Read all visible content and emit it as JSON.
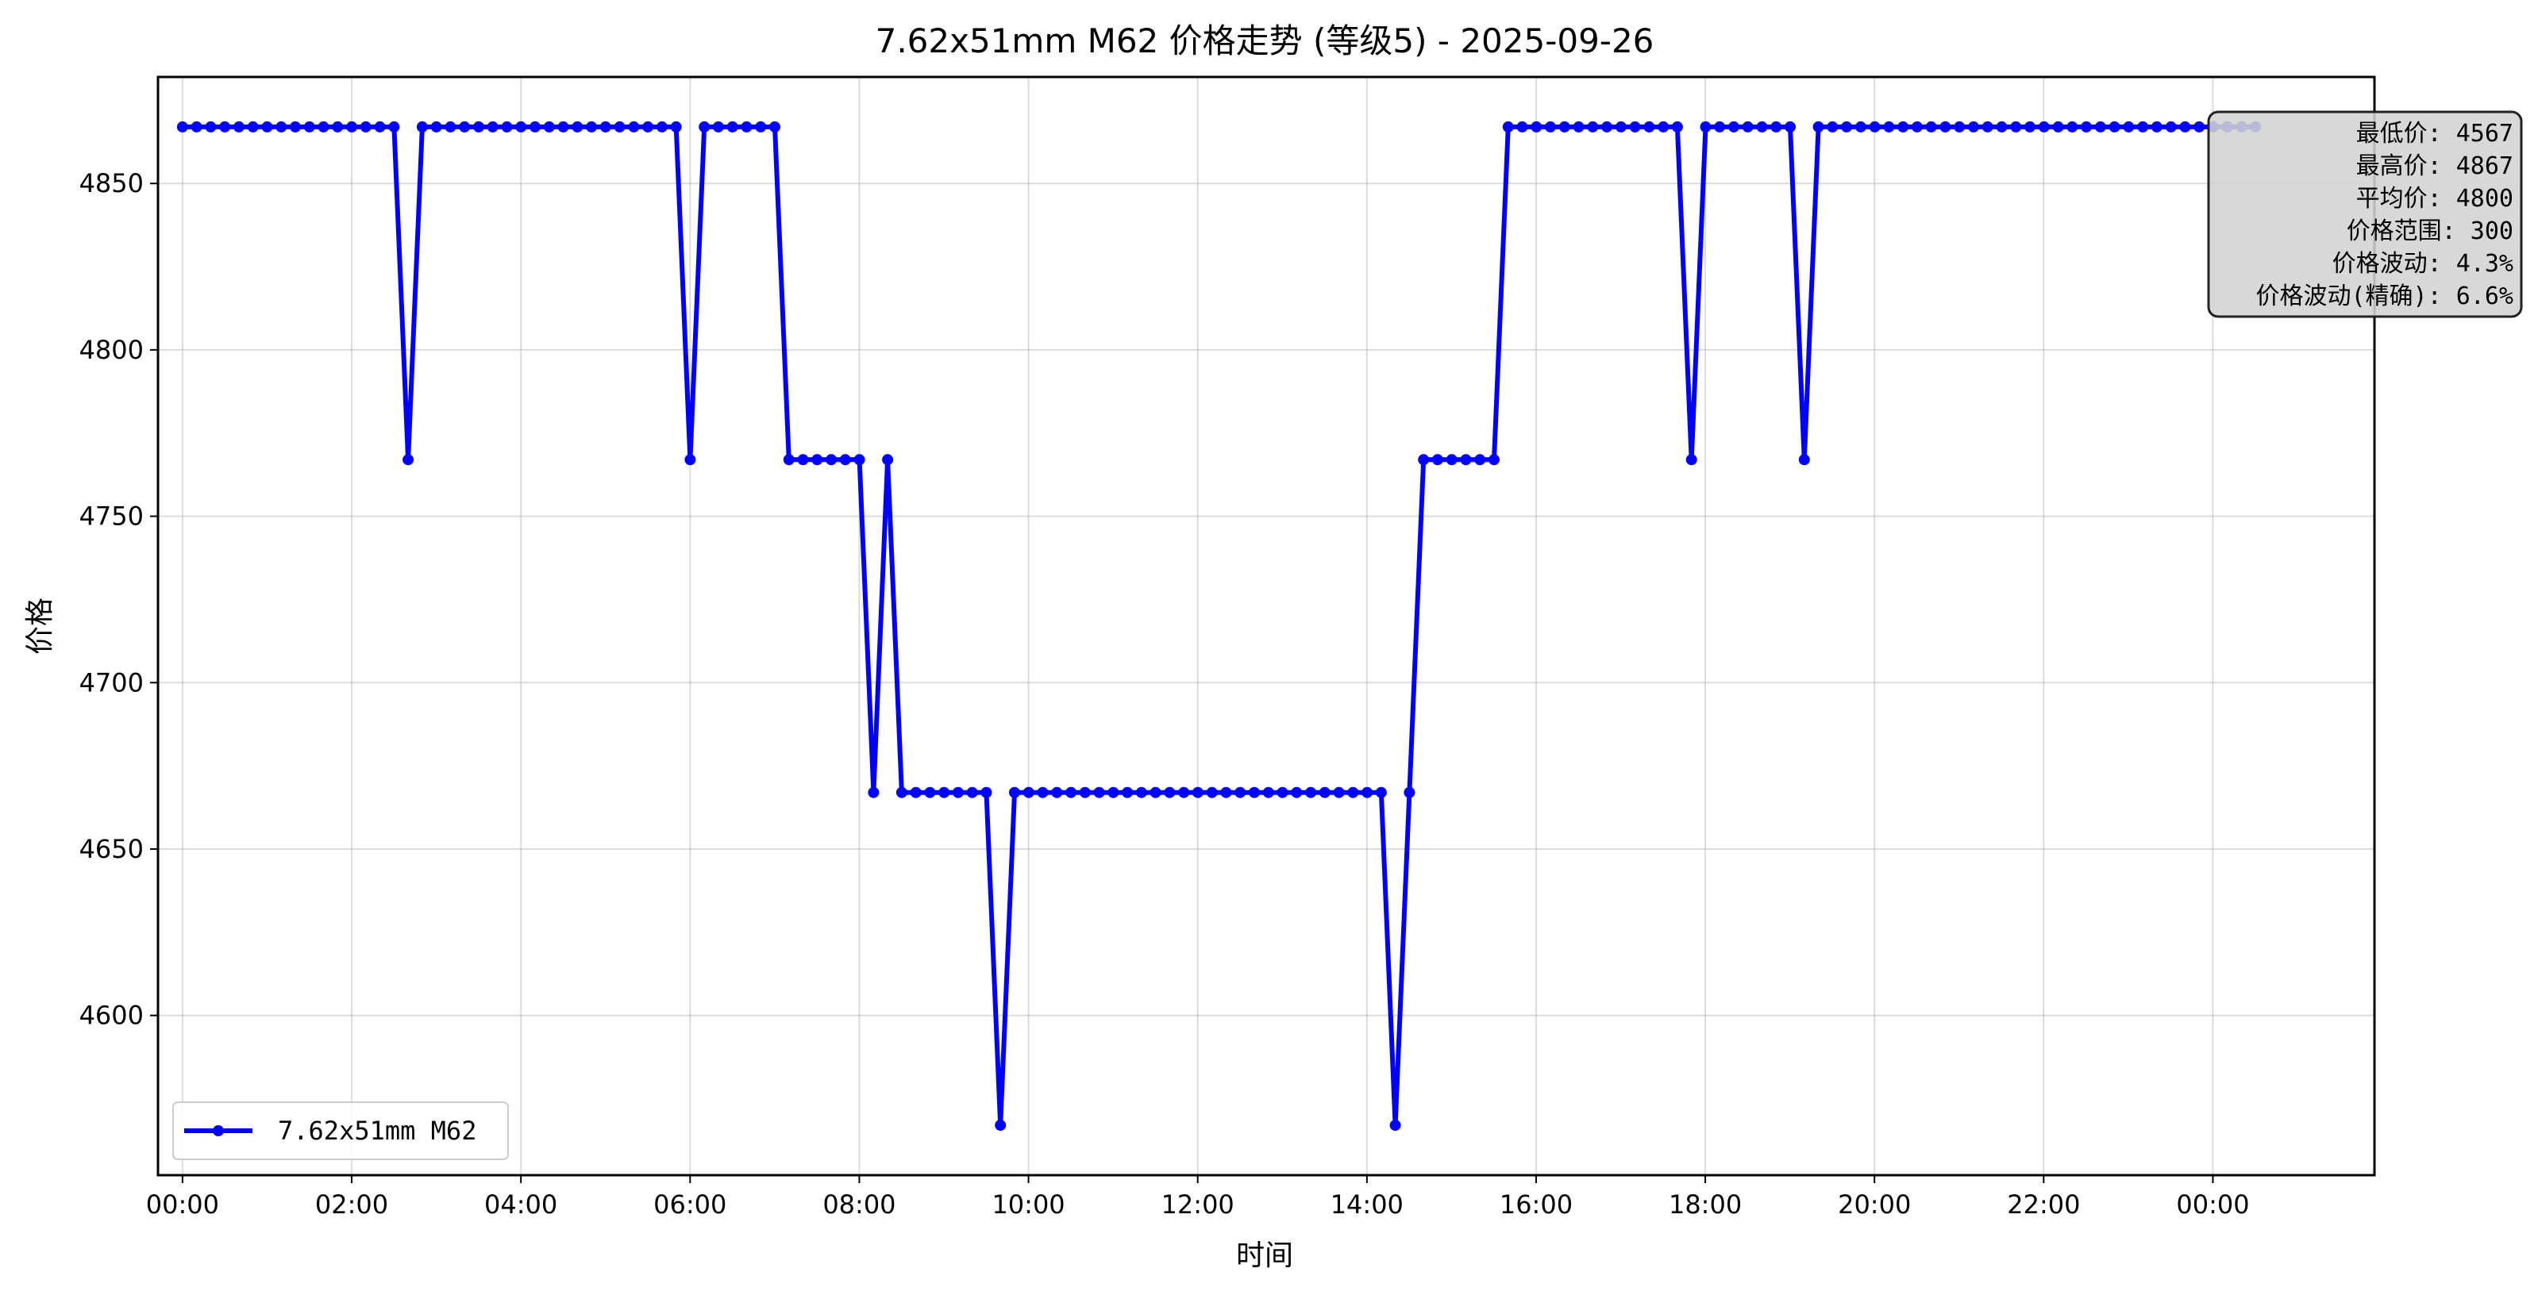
{
  "chart_data": {
    "type": "line",
    "title": "7.62x51mm M62 价格走势 (等级5) - 2025-09-26",
    "xlabel": "时间",
    "ylabel": "价格",
    "xlim": [
      -0.29,
      25.91
    ],
    "ylim": [
      4552,
      4882
    ],
    "x_ticks": [
      0,
      2,
      4,
      6,
      8,
      10,
      12,
      14,
      16,
      18,
      20,
      22,
      24
    ],
    "x_tick_labels": [
      "00:00",
      "02:00",
      "04:00",
      "06:00",
      "08:00",
      "10:00",
      "12:00",
      "14:00",
      "16:00",
      "18:00",
      "20:00",
      "22:00",
      "00:00"
    ],
    "y_ticks": [
      4600,
      4650,
      4700,
      4750,
      4800,
      4850
    ],
    "y_tick_labels": [
      "4600",
      "4650",
      "4700",
      "4750",
      "4800",
      "4850"
    ],
    "grid": true,
    "legend_position": "lower-left",
    "series": [
      {
        "name": "7.62x51mm M62",
        "color": "#0000ff",
        "marker": "circle",
        "x_step_hours": 0.1667,
        "values": [
          4867,
          4867,
          4867,
          4867,
          4867,
          4867,
          4867,
          4867,
          4867,
          4867,
          4867,
          4867,
          4867,
          4867,
          4867,
          4867,
          4767,
          4867,
          4867,
          4867,
          4867,
          4867,
          4867,
          4867,
          4867,
          4867,
          4867,
          4867,
          4867,
          4867,
          4867,
          4867,
          4867,
          4867,
          4867,
          4867,
          4767,
          4867,
          4867,
          4867,
          4867,
          4867,
          4867,
          4767,
          4767,
          4767,
          4767,
          4767,
          4767,
          4667,
          4767,
          4667,
          4667,
          4667,
          4667,
          4667,
          4667,
          4667,
          4567,
          4667,
          4667,
          4667,
          4667,
          4667,
          4667,
          4667,
          4667,
          4667,
          4667,
          4667,
          4667,
          4667,
          4667,
          4667,
          4667,
          4667,
          4667,
          4667,
          4667,
          4667,
          4667,
          4667,
          4667,
          4667,
          4667,
          4667,
          4567,
          4667,
          4767,
          4767,
          4767,
          4767,
          4767,
          4767,
          4867,
          4867,
          4867,
          4867,
          4867,
          4867,
          4867,
          4867,
          4867,
          4867,
          4867,
          4867,
          4867,
          4767,
          4867,
          4867,
          4867,
          4867,
          4867,
          4867,
          4867,
          4767,
          4867,
          4867,
          4867,
          4867,
          4867,
          4867,
          4867,
          4867,
          4867,
          4867,
          4867,
          4867,
          4867,
          4867,
          4867,
          4867,
          4867,
          4867,
          4867,
          4867,
          4867,
          4867,
          4867,
          4867,
          4867,
          4867,
          4867,
          4867,
          4867,
          4867,
          4867,
          4867
        ]
      }
    ],
    "legend_entries": [
      "7.62x51mm M62"
    ],
    "stats_box": {
      "position": "top-right",
      "lines": [
        "最低价: 4567",
        "最高价: 4867",
        "平均价: 4800",
        "价格范围: 300",
        "价格波动: 4.3%",
        "价格波动(精确): 6.6%"
      ]
    }
  }
}
